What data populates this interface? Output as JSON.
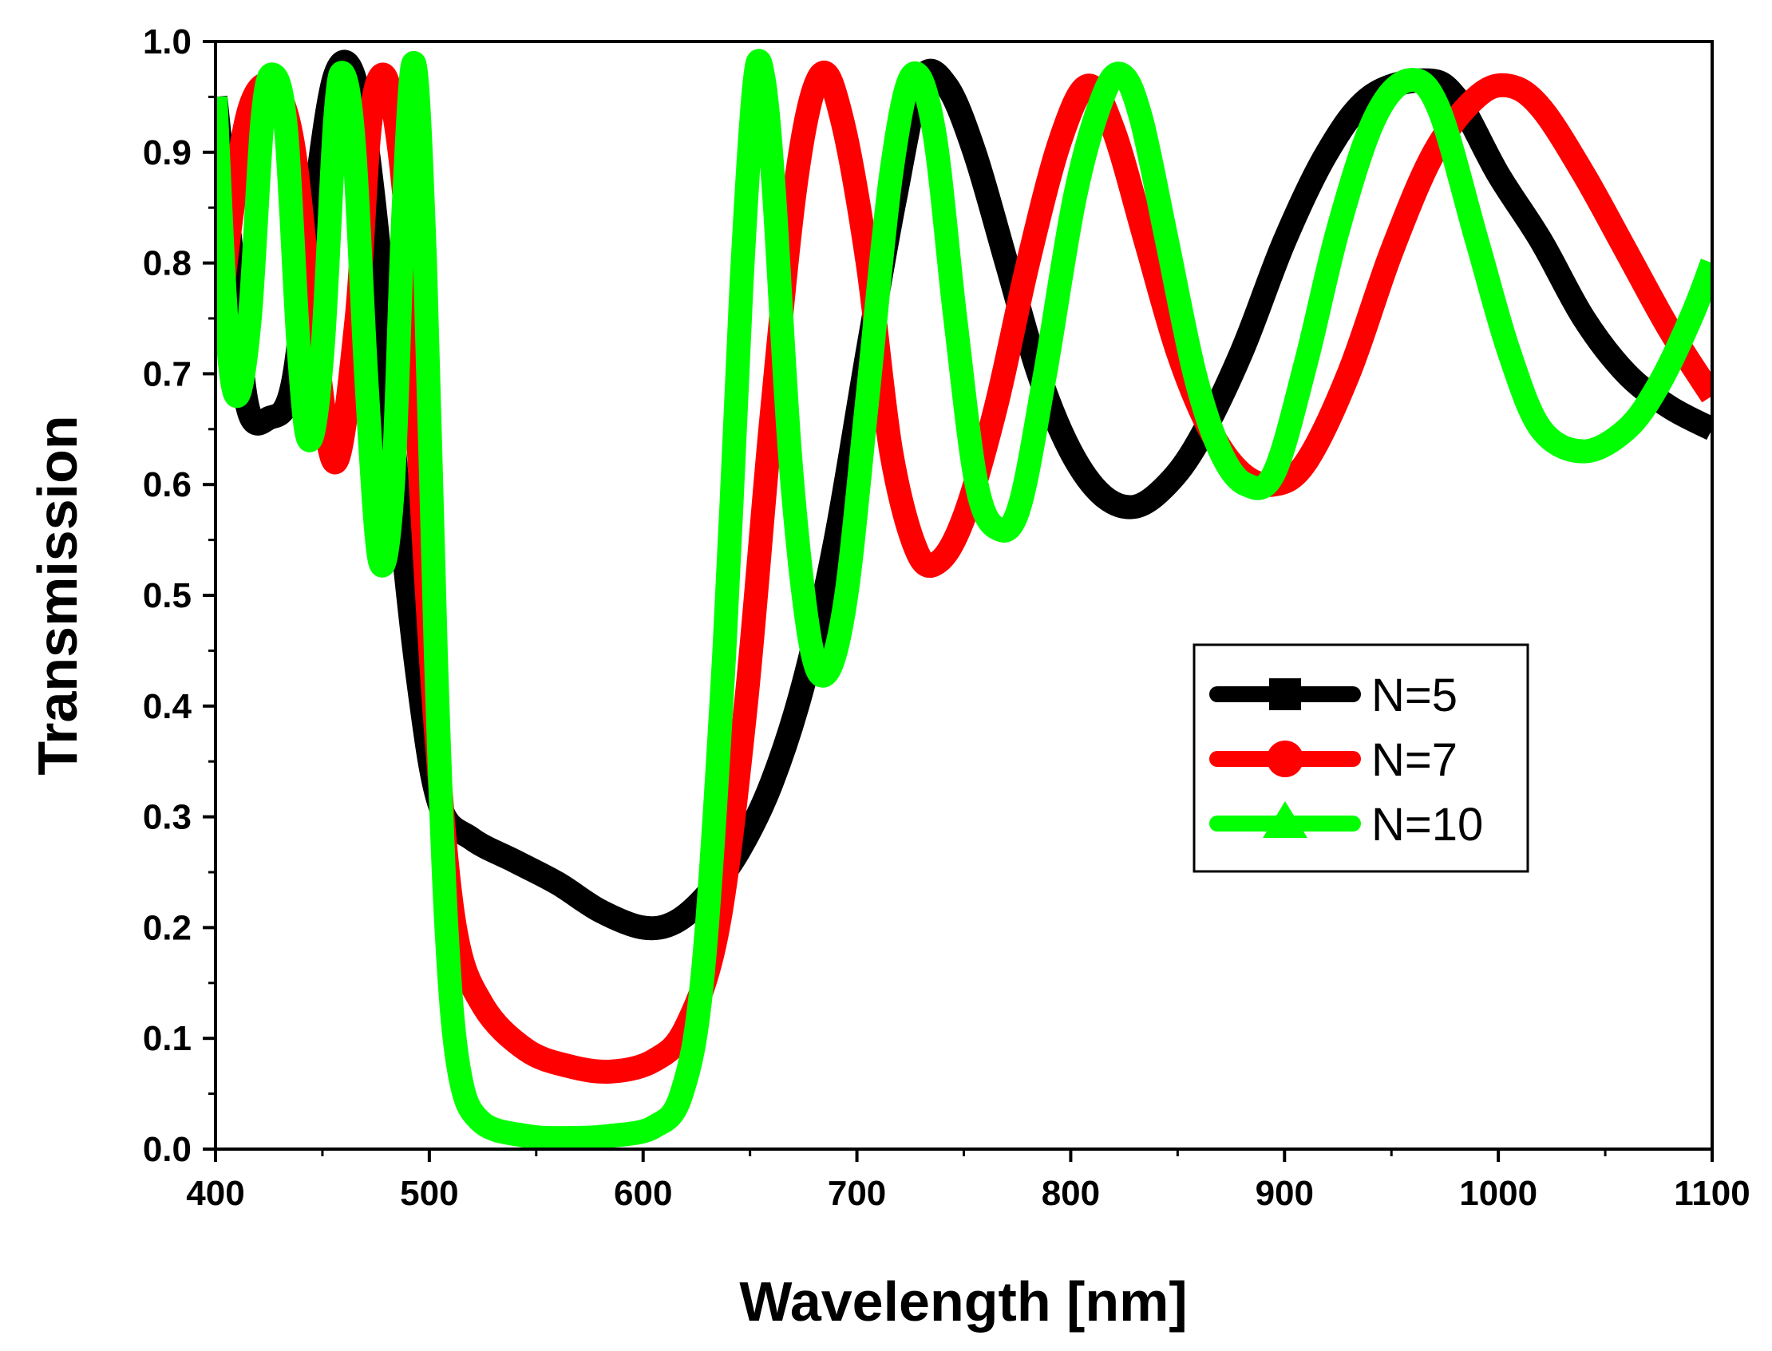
{
  "chart_data": {
    "type": "line",
    "title": "",
    "xlabel": "Wavelength [nm]",
    "ylabel": "Transmission",
    "xlim": [
      400,
      1100
    ],
    "ylim": [
      0.0,
      1.0
    ],
    "x_ticks": [
      400,
      500,
      600,
      700,
      800,
      900,
      1000,
      1100
    ],
    "x_tick_labels": [
      "400",
      "500",
      "600",
      "700",
      "800",
      "900",
      "1000",
      "1100"
    ],
    "y_ticks": [
      0.0,
      0.1,
      0.2,
      0.3,
      0.4,
      0.5,
      0.6,
      0.7,
      0.8,
      0.9,
      1.0
    ],
    "y_tick_labels": [
      "0.0",
      "0.1",
      "0.2",
      "0.3",
      "0.4",
      "0.5",
      "0.6",
      "0.7",
      "0.8",
      "0.9",
      "1.0"
    ],
    "grid": false,
    "legend_position": "center-right",
    "series": [
      {
        "name": "N=5",
        "color": "#000000",
        "marker": "square",
        "points": [
          [
            400,
            0.95
          ],
          [
            408,
            0.8
          ],
          [
            415,
            0.67
          ],
          [
            425,
            0.66
          ],
          [
            436,
            0.69
          ],
          [
            446,
            0.85
          ],
          [
            456,
            0.97
          ],
          [
            466,
            0.96
          ],
          [
            476,
            0.82
          ],
          [
            485,
            0.6
          ],
          [
            495,
            0.42
          ],
          [
            505,
            0.31
          ],
          [
            520,
            0.28
          ],
          [
            540,
            0.26
          ],
          [
            560,
            0.24
          ],
          [
            580,
            0.215
          ],
          [
            600,
            0.2
          ],
          [
            615,
            0.205
          ],
          [
            630,
            0.23
          ],
          [
            645,
            0.27
          ],
          [
            660,
            0.33
          ],
          [
            675,
            0.42
          ],
          [
            690,
            0.55
          ],
          [
            705,
            0.72
          ],
          [
            718,
            0.86
          ],
          [
            730,
            0.965
          ],
          [
            742,
            0.96
          ],
          [
            755,
            0.9
          ],
          [
            770,
            0.8
          ],
          [
            785,
            0.7
          ],
          [
            800,
            0.63
          ],
          [
            815,
            0.59
          ],
          [
            830,
            0.58
          ],
          [
            845,
            0.6
          ],
          [
            860,
            0.64
          ],
          [
            880,
            0.72
          ],
          [
            900,
            0.82
          ],
          [
            920,
            0.9
          ],
          [
            940,
            0.95
          ],
          [
            965,
            0.965
          ],
          [
            980,
            0.95
          ],
          [
            1000,
            0.88
          ],
          [
            1020,
            0.82
          ],
          [
            1040,
            0.75
          ],
          [
            1060,
            0.7
          ],
          [
            1080,
            0.67
          ],
          [
            1100,
            0.65
          ]
        ]
      },
      {
        "name": "N=7",
        "color": "#ff0000",
        "marker": "circle",
        "points": [
          [
            400,
            0.72
          ],
          [
            408,
            0.85
          ],
          [
            416,
            0.94
          ],
          [
            426,
            0.96
          ],
          [
            436,
            0.91
          ],
          [
            446,
            0.74
          ],
          [
            456,
            0.62
          ],
          [
            466,
            0.75
          ],
          [
            472,
            0.92
          ],
          [
            478,
            0.97
          ],
          [
            484,
            0.93
          ],
          [
            490,
            0.82
          ],
          [
            496,
            0.6
          ],
          [
            503,
            0.38
          ],
          [
            512,
            0.2
          ],
          [
            525,
            0.13
          ],
          [
            545,
            0.09
          ],
          [
            565,
            0.075
          ],
          [
            585,
            0.07
          ],
          [
            605,
            0.08
          ],
          [
            620,
            0.11
          ],
          [
            635,
            0.2
          ],
          [
            648,
            0.4
          ],
          [
            660,
            0.66
          ],
          [
            672,
            0.88
          ],
          [
            683,
            0.97
          ],
          [
            693,
            0.93
          ],
          [
            705,
            0.8
          ],
          [
            716,
            0.63
          ],
          [
            728,
            0.54
          ],
          [
            738,
            0.53
          ],
          [
            750,
            0.57
          ],
          [
            765,
            0.67
          ],
          [
            780,
            0.8
          ],
          [
            795,
            0.91
          ],
          [
            808,
            0.96
          ],
          [
            820,
            0.92
          ],
          [
            835,
            0.82
          ],
          [
            850,
            0.72
          ],
          [
            865,
            0.65
          ],
          [
            880,
            0.61
          ],
          [
            895,
            0.6
          ],
          [
            910,
            0.62
          ],
          [
            930,
            0.7
          ],
          [
            950,
            0.81
          ],
          [
            970,
            0.9
          ],
          [
            990,
            0.95
          ],
          [
            1005,
            0.96
          ],
          [
            1020,
            0.94
          ],
          [
            1040,
            0.88
          ],
          [
            1060,
            0.81
          ],
          [
            1080,
            0.74
          ],
          [
            1100,
            0.68
          ]
        ]
      },
      {
        "name": "N=10",
        "color": "#00ff00",
        "marker": "triangle",
        "points": [
          [
            400,
            0.95
          ],
          [
            405,
            0.75
          ],
          [
            410,
            0.68
          ],
          [
            416,
            0.75
          ],
          [
            422,
            0.93
          ],
          [
            427,
            0.97
          ],
          [
            433,
            0.92
          ],
          [
            439,
            0.72
          ],
          [
            444,
            0.64
          ],
          [
            450,
            0.72
          ],
          [
            456,
            0.93
          ],
          [
            460,
            0.97
          ],
          [
            465,
            0.9
          ],
          [
            471,
            0.68
          ],
          [
            477,
            0.53
          ],
          [
            483,
            0.6
          ],
          [
            488,
            0.85
          ],
          [
            493,
            0.98
          ],
          [
            498,
            0.8
          ],
          [
            503,
            0.45
          ],
          [
            508,
            0.2
          ],
          [
            514,
            0.07
          ],
          [
            524,
            0.025
          ],
          [
            545,
            0.012
          ],
          [
            565,
            0.01
          ],
          [
            585,
            0.012
          ],
          [
            605,
            0.02
          ],
          [
            618,
            0.05
          ],
          [
            628,
            0.16
          ],
          [
            638,
            0.45
          ],
          [
            646,
            0.78
          ],
          [
            652,
            0.96
          ],
          [
            656,
            0.97
          ],
          [
            661,
            0.87
          ],
          [
            669,
            0.62
          ],
          [
            678,
            0.46
          ],
          [
            686,
            0.43
          ],
          [
            695,
            0.5
          ],
          [
            705,
            0.68
          ],
          [
            716,
            0.88
          ],
          [
            726,
            0.97
          ],
          [
            736,
            0.92
          ],
          [
            746,
            0.75
          ],
          [
            756,
            0.6
          ],
          [
            766,
            0.56
          ],
          [
            776,
            0.58
          ],
          [
            788,
            0.7
          ],
          [
            802,
            0.86
          ],
          [
            815,
            0.95
          ],
          [
            824,
            0.97
          ],
          [
            833,
            0.93
          ],
          [
            845,
            0.82
          ],
          [
            858,
            0.7
          ],
          [
            870,
            0.63
          ],
          [
            882,
            0.6
          ],
          [
            895,
            0.61
          ],
          [
            910,
            0.71
          ],
          [
            925,
            0.83
          ],
          [
            942,
            0.93
          ],
          [
            958,
            0.965
          ],
          [
            972,
            0.94
          ],
          [
            990,
            0.82
          ],
          [
            1005,
            0.72
          ],
          [
            1020,
            0.65
          ],
          [
            1040,
            0.63
          ],
          [
            1060,
            0.65
          ],
          [
            1075,
            0.69
          ],
          [
            1090,
            0.75
          ],
          [
            1100,
            0.8
          ]
        ]
      }
    ]
  }
}
